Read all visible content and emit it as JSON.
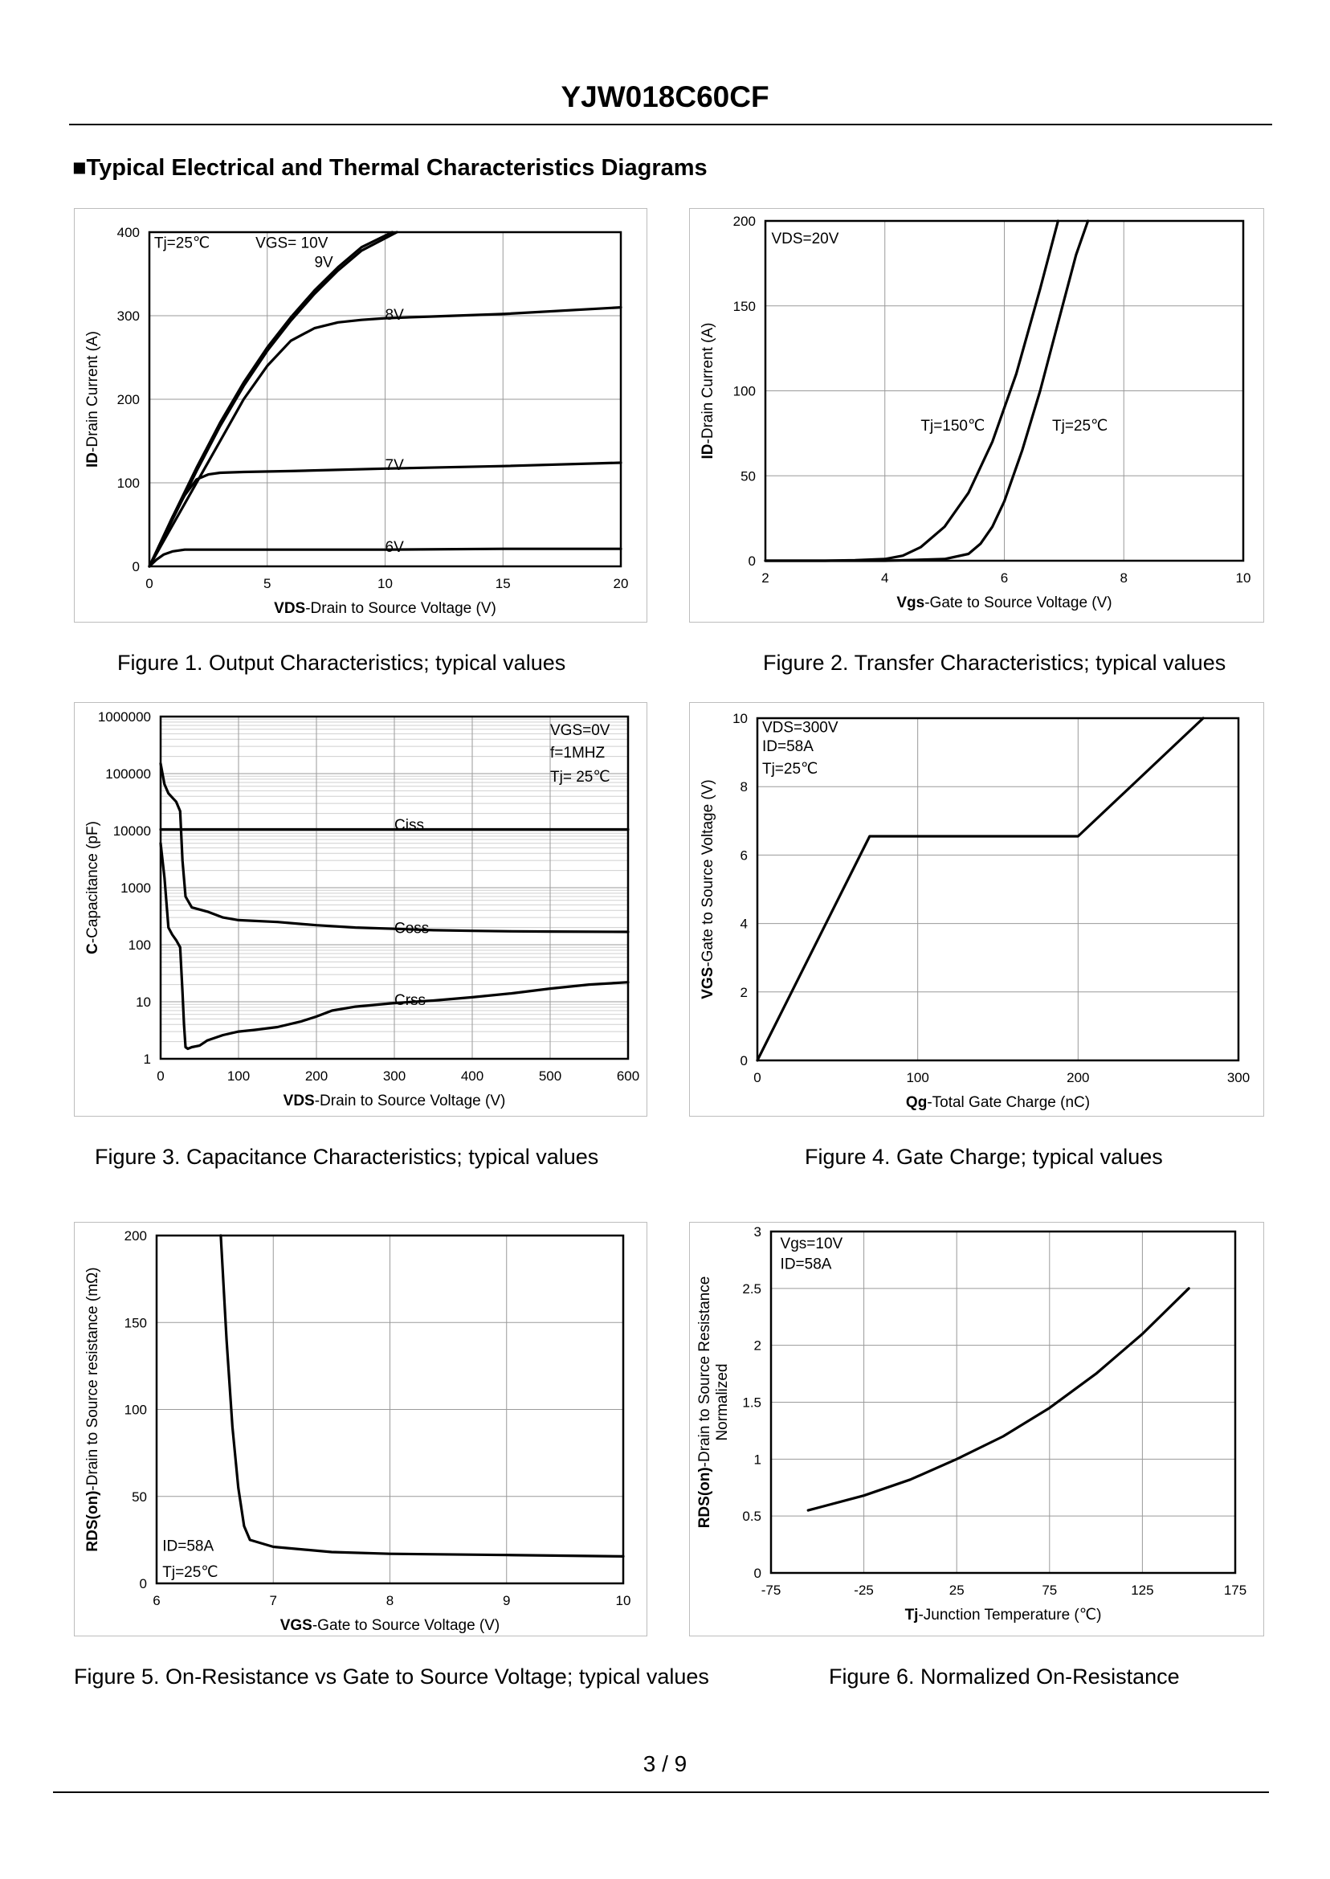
{
  "page": {
    "title": "YJW018C60CF",
    "section_heading": "■Typical Electrical and Thermal Characteristics Diagrams",
    "page_number": "3 / 9"
  },
  "figures": [
    {
      "caption": "Figure 1.  Output Characteristics; typical values"
    },
    {
      "caption": "Figure 2.  Transfer Characteristics; typical values"
    },
    {
      "caption": "Figure 3.  Capacitance Characteristics; typical values"
    },
    {
      "caption": "Figure 4.  Gate Charge; typical values"
    },
    {
      "caption": "Figure 5.  On-Resistance vs Gate to Source Voltage; typical values"
    },
    {
      "caption": "Figure 6.  Normalized On-Resistance"
    }
  ],
  "chart_data": [
    {
      "id": "fig1",
      "type": "line",
      "title": "Output Characteristics",
      "xlabel_bold": "VDS",
      "xlabel_rest": "-Drain to Source Voltage (V)",
      "ylabel_bold": "ID",
      "ylabel_rest": "-Drain Current  (A)",
      "xlim": [
        0,
        20
      ],
      "ylim": [
        0,
        400
      ],
      "xticks": [
        0,
        5,
        10,
        15,
        20
      ],
      "yticks": [
        0,
        100,
        200,
        300,
        400
      ],
      "grid": true,
      "annotations": [
        {
          "text": "Tj=25℃",
          "x": 0.2,
          "y": 388
        },
        {
          "text": "VGS= 10V",
          "x": 4.5,
          "y": 388
        },
        {
          "text": "9V",
          "x": 7.0,
          "y": 365
        },
        {
          "text": "8V",
          "x": 10.0,
          "y": 302
        },
        {
          "text": "7V",
          "x": 10.0,
          "y": 122
        },
        {
          "text": "6V",
          "x": 10.0,
          "y": 24
        }
      ],
      "series": [
        {
          "name": "10V",
          "x": [
            0,
            1,
            2,
            3,
            4,
            5,
            6,
            7,
            8,
            9,
            10.3
          ],
          "y": [
            0,
            60,
            118,
            172,
            220,
            262,
            298,
            330,
            358,
            382,
            400
          ]
        },
        {
          "name": "9V",
          "x": [
            0,
            1,
            2,
            3,
            4,
            5,
            6,
            7,
            8,
            9,
            10.5
          ],
          "y": [
            0,
            57,
            114,
            168,
            216,
            258,
            294,
            326,
            354,
            378,
            400
          ]
        },
        {
          "name": "8V",
          "x": [
            0,
            1,
            2,
            3,
            4,
            5,
            6,
            7,
            8,
            9,
            10,
            12,
            15,
            20
          ],
          "y": [
            0,
            50,
            100,
            150,
            200,
            240,
            270,
            285,
            292,
            295,
            297,
            299,
            302,
            310
          ]
        },
        {
          "name": "7V",
          "x": [
            0,
            0.5,
            1,
            1.5,
            2,
            2.5,
            3,
            4,
            6,
            10,
            15,
            20
          ],
          "y": [
            0,
            30,
            60,
            85,
            104,
            110,
            112,
            113,
            114,
            117,
            120,
            124
          ]
        },
        {
          "name": "6V",
          "x": [
            0,
            0.3,
            0.6,
            1,
            1.5,
            2,
            5,
            10,
            15,
            20
          ],
          "y": [
            0,
            8,
            14,
            18,
            20,
            20,
            20,
            20,
            21,
            21
          ]
        }
      ]
    },
    {
      "id": "fig2",
      "type": "line",
      "title": "Transfer Characteristics",
      "xlabel_bold": "Vgs",
      "xlabel_rest": "-Gate to Source Voltage (V)",
      "ylabel_bold": "ID",
      "ylabel_rest": "-Drain Current  (A)",
      "xlim": [
        2,
        10
      ],
      "ylim": [
        0,
        200
      ],
      "xticks": [
        2,
        4,
        6,
        8,
        10
      ],
      "yticks": [
        0,
        50,
        100,
        150,
        200
      ],
      "grid": true,
      "annotations": [
        {
          "text": "VDS=20V",
          "x": 2.1,
          "y": 190
        },
        {
          "text": "Tj=150℃",
          "x": 4.6,
          "y": 80
        },
        {
          "text": "Tj=25℃",
          "x": 6.8,
          "y": 80
        }
      ],
      "series": [
        {
          "name": "Tj=150℃",
          "x": [
            2,
            3,
            3.5,
            4,
            4.3,
            4.6,
            5,
            5.4,
            5.8,
            6.2,
            6.6,
            6.9
          ],
          "y": [
            0,
            0,
            0.3,
            1,
            3,
            8,
            20,
            40,
            70,
            110,
            160,
            200
          ]
        },
        {
          "name": "Tj=25℃",
          "x": [
            2,
            4,
            5,
            5.4,
            5.6,
            5.8,
            6,
            6.3,
            6.6,
            6.9,
            7.2,
            7.4
          ],
          "y": [
            0,
            0,
            1,
            4,
            10,
            20,
            35,
            65,
            100,
            140,
            180,
            200
          ]
        }
      ]
    },
    {
      "id": "fig3",
      "type": "line",
      "yscale": "log",
      "title": "Capacitance Characteristics",
      "xlabel_bold": "VDS",
      "xlabel_rest": "-Drain to Source Voltage (V)",
      "ylabel_bold": "C",
      "ylabel_rest": "-Capacitance (pF)",
      "xlim": [
        0,
        600
      ],
      "ylim": [
        1,
        1000000
      ],
      "xticks": [
        0,
        100,
        200,
        300,
        400,
        500,
        600
      ],
      "yticks": [
        1,
        10,
        100,
        1000,
        10000,
        100000,
        1000000
      ],
      "yticklabels": [
        "1",
        "10",
        "100",
        "1000",
        "10000",
        "100000",
        "1000000"
      ],
      "grid": true,
      "annotations": [
        {
          "text": "VGS=0V",
          "x": 500,
          "y": 600000
        },
        {
          "text": "f=1MHZ",
          "x": 500,
          "y": 240000
        },
        {
          "text": "Tj= 25℃",
          "x": 500,
          "y": 90000
        },
        {
          "text": "Ciss",
          "x": 300,
          "y": 13000
        },
        {
          "text": "Coss",
          "x": 300,
          "y": 200
        },
        {
          "text": "Crss",
          "x": 300,
          "y": 11
        }
      ],
      "series": [
        {
          "name": "Ciss",
          "x": [
            0,
            600
          ],
          "y": [
            10500,
            10500
          ]
        },
        {
          "name": "Coss",
          "x": [
            0,
            5,
            10,
            15,
            20,
            25,
            28,
            32,
            40,
            60,
            80,
            100,
            150,
            200,
            250,
            300,
            350,
            400,
            450,
            500,
            600
          ],
          "y": [
            150000,
            65000,
            45000,
            38000,
            32000,
            22000,
            3000,
            700,
            450,
            380,
            300,
            270,
            250,
            220,
            200,
            190,
            180,
            175,
            172,
            170,
            168
          ]
        },
        {
          "name": "Crss",
          "x": [
            0,
            5,
            10,
            15,
            20,
            25,
            28,
            30,
            32,
            35,
            40,
            50,
            60,
            80,
            100,
            120,
            150,
            180,
            200,
            220,
            250,
            300,
            350,
            400,
            450,
            500,
            550,
            600
          ],
          "y": [
            6000,
            1500,
            200,
            150,
            120,
            90,
            15,
            4,
            1.6,
            1.5,
            1.6,
            1.7,
            2.1,
            2.6,
            3,
            3.2,
            3.6,
            4.5,
            5.5,
            7,
            8.2,
            9.5,
            10.5,
            12,
            14,
            17,
            20,
            22
          ]
        }
      ]
    },
    {
      "id": "fig4",
      "type": "line",
      "title": "Gate Charge",
      "xlabel_bold": "Qg",
      "xlabel_rest": "-Total  Gate Charge (nC)",
      "ylabel_bold": "VGS",
      "ylabel_rest": "-Gate to Source Voltage (V)",
      "xlim": [
        0,
        300
      ],
      "ylim": [
        0,
        10
      ],
      "xticks": [
        0,
        100,
        200,
        300
      ],
      "yticks": [
        0,
        2,
        4,
        6,
        8,
        10
      ],
      "grid": true,
      "annotations": [
        {
          "text": "VDS=300V",
          "x": 3,
          "y": 9.75
        },
        {
          "text": "ID=58A",
          "x": 3,
          "y": 9.2
        },
        {
          "text": "Tj=25℃",
          "x": 3,
          "y": 8.55
        }
      ],
      "series": [
        {
          "name": "VGS",
          "x": [
            0,
            70,
            200,
            278
          ],
          "y": [
            0,
            6.55,
            6.55,
            10
          ]
        }
      ]
    },
    {
      "id": "fig5",
      "type": "line",
      "title": "On-Resistance vs Gate to Source Voltage",
      "xlabel_bold": "VGS",
      "xlabel_rest": "-Gate to Source Voltage (V)",
      "ylabel_bold": "RDS(on)",
      "ylabel_rest": "-Drain to Source resistance (mΩ)",
      "xlim": [
        6,
        10
      ],
      "ylim": [
        0,
        200
      ],
      "xticks": [
        6,
        7,
        8,
        9,
        10
      ],
      "yticks": [
        0,
        50,
        100,
        150,
        200
      ],
      "grid": true,
      "annotations": [
        {
          "text": "ID=58A",
          "x": 6.05,
          "y": 22
        },
        {
          "text": "Tj=25℃",
          "x": 6.05,
          "y": 7
        }
      ],
      "series": [
        {
          "name": "RDS(on)",
          "x": [
            6.55,
            6.6,
            6.65,
            6.7,
            6.75,
            6.8,
            7,
            7.5,
            8,
            9,
            10
          ],
          "y": [
            200,
            140,
            90,
            55,
            33,
            25,
            21,
            18,
            17,
            16.3,
            15.5
          ]
        }
      ]
    },
    {
      "id": "fig6",
      "type": "line",
      "title": "Normalized On-Resistance",
      "xlabel_bold": "Tj",
      "xlabel_rest": "-Junction  Temperature  (℃)",
      "ylabel_bold": "RDS(on)",
      "ylabel_rest": "-Drain to Source Resistance",
      "ylabel_line2": "Normalized",
      "xlim": [
        -75,
        175
      ],
      "ylim": [
        0,
        3
      ],
      "xticks": [
        -75,
        -25,
        25,
        75,
        125,
        175
      ],
      "yticks": [
        0,
        0.5,
        1,
        1.5,
        2,
        2.5,
        3
      ],
      "grid": true,
      "annotations": [
        {
          "text": "Vgs=10V",
          "x": -70,
          "y": 2.9
        },
        {
          "text": "ID=58A",
          "x": -70,
          "y": 2.72
        }
      ],
      "series": [
        {
          "name": "RDS(on) normalized",
          "x": [
            -55,
            -25,
            0,
            25,
            50,
            75,
            100,
            125,
            150
          ],
          "y": [
            0.55,
            0.68,
            0.82,
            1,
            1.2,
            1.45,
            1.75,
            2.1,
            2.5
          ]
        }
      ]
    }
  ]
}
